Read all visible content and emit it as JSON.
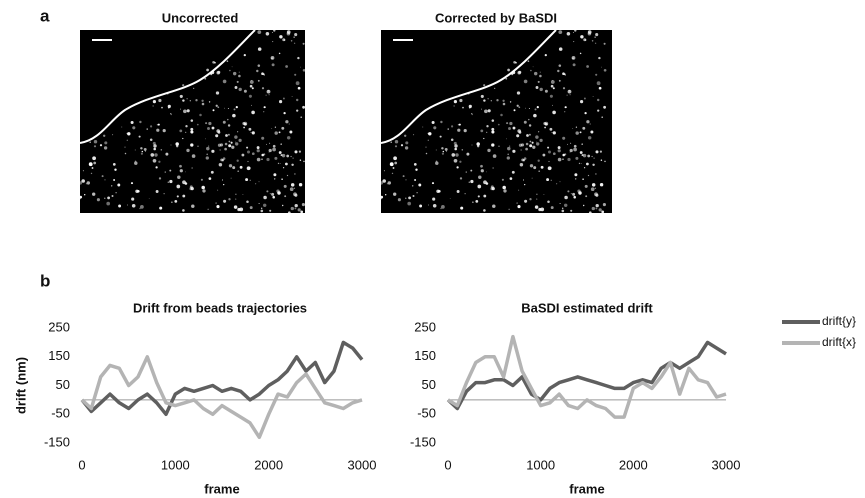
{
  "panels": [
    {
      "label": "a",
      "images": [
        {
          "title": "Uncorrected"
        },
        {
          "title": "Corrected by BaSDI"
        }
      ]
    },
    {
      "label": "b"
    }
  ],
  "chart_data": [
    {
      "type": "line",
      "title": "Drift from beads trajectories",
      "xlabel": "frame",
      "ylabel": "drift (nm)",
      "x": [
        0,
        100,
        200,
        300,
        400,
        500,
        600,
        700,
        800,
        900,
        1000,
        1100,
        1200,
        1300,
        1400,
        1500,
        1600,
        1700,
        1800,
        1900,
        2000,
        2100,
        2200,
        2300,
        2400,
        2500,
        2600,
        2700,
        2800,
        2900,
        3000
      ],
      "xlim": [
        0,
        3000
      ],
      "xticks": [
        0,
        1000,
        2000,
        3000
      ],
      "ylim": [
        -150,
        250
      ],
      "yticks": [
        250,
        150,
        50,
        -50,
        -150
      ],
      "series": [
        {
          "color": "#5f5f5f",
          "values": [
            0,
            -40,
            -10,
            20,
            -10,
            -30,
            0,
            20,
            -10,
            -50,
            20,
            40,
            30,
            40,
            50,
            30,
            40,
            30,
            0,
            20,
            50,
            70,
            100,
            150,
            100,
            130,
            60,
            100,
            200,
            180,
            140
          ]
        },
        {
          "color": "#b4b4b4",
          "values": [
            0,
            -30,
            80,
            120,
            110,
            50,
            80,
            150,
            60,
            -10,
            -20,
            -10,
            0,
            -30,
            -50,
            -20,
            -40,
            -60,
            -80,
            -130,
            -50,
            20,
            10,
            60,
            90,
            40,
            -10,
            -20,
            -30,
            -10,
            0
          ]
        }
      ]
    },
    {
      "type": "line",
      "title": "BaSDI estimated drift",
      "xlabel": "frame",
      "x": [
        0,
        100,
        200,
        300,
        400,
        500,
        600,
        700,
        800,
        900,
        1000,
        1100,
        1200,
        1300,
        1400,
        1500,
        1600,
        1700,
        1800,
        1900,
        2000,
        2100,
        2200,
        2300,
        2400,
        2500,
        2600,
        2700,
        2800,
        2900,
        3000
      ],
      "xlim": [
        0,
        3000
      ],
      "xticks": [
        0,
        1000,
        2000,
        3000
      ],
      "ylim": [
        -150,
        250
      ],
      "yticks": [
        250,
        150,
        50,
        -50,
        -150
      ],
      "legend": "right",
      "series": [
        {
          "name": "drift{y}",
          "color": "#5f5f5f",
          "values": [
            0,
            -30,
            30,
            60,
            60,
            70,
            70,
            50,
            80,
            20,
            0,
            40,
            60,
            70,
            80,
            70,
            60,
            50,
            40,
            40,
            60,
            70,
            60,
            110,
            130,
            110,
            130,
            150,
            200,
            180,
            160
          ]
        },
        {
          "name": "drift{x}",
          "color": "#b4b4b4",
          "values": [
            0,
            -20,
            60,
            130,
            150,
            150,
            80,
            220,
            100,
            40,
            -20,
            -10,
            20,
            -20,
            -30,
            0,
            -20,
            -30,
            -60,
            -60,
            40,
            60,
            40,
            80,
            130,
            20,
            110,
            70,
            60,
            10,
            20
          ]
        }
      ]
    }
  ]
}
